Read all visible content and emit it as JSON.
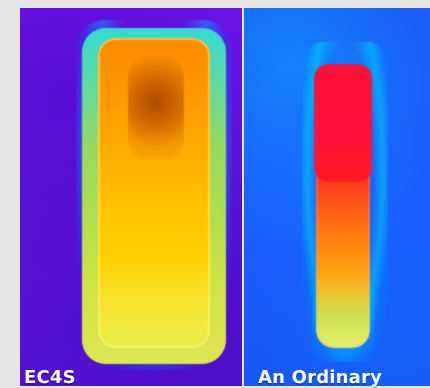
{
  "captions": {
    "left": "EC4S",
    "right": "An Ordinary"
  },
  "colors": {
    "left_background": "#5e12db",
    "right_background": "#1d58ff",
    "hot_red": "#ff103b",
    "hot_orange": "#ff9a00",
    "warm_yellow": "#e7f04f"
  }
}
